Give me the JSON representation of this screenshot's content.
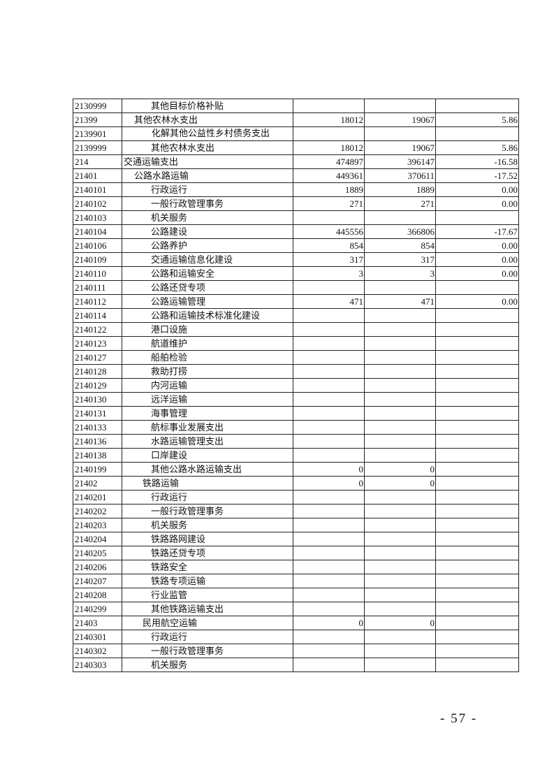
{
  "table": {
    "rows": [
      {
        "code": "2130999",
        "name": "其他目标价格补贴",
        "level": "l2",
        "v1": "",
        "v2": "",
        "v3": ""
      },
      {
        "code": "21399",
        "name": "其他农林水支出",
        "level": "l1",
        "v1": "18012",
        "v2": "19067",
        "v3": "5.86"
      },
      {
        "code": "2139901",
        "name": "化解其他公益性乡村债务支出",
        "level": "wrap",
        "v1": "",
        "v2": "",
        "v3": ""
      },
      {
        "code": "2139999",
        "name": "其他农林水支出",
        "level": "l2",
        "v1": "18012",
        "v2": "19067",
        "v3": "5.86"
      },
      {
        "code": "214",
        "name": "交通运输支出",
        "level": "l0",
        "v1": "474897",
        "v2": "396147",
        "v3": "-16.58"
      },
      {
        "code": "21401",
        "name": "公路水路运输",
        "level": "l1",
        "v1": "449361",
        "v2": "370611",
        "v3": "-17.52"
      },
      {
        "code": "2140101",
        "name": "行政运行",
        "level": "l2",
        "v1": "1889",
        "v2": "1889",
        "v3": "0.00"
      },
      {
        "code": "2140102",
        "name": "一般行政管理事务",
        "level": "l2",
        "v1": "271",
        "v2": "271",
        "v3": "0.00"
      },
      {
        "code": "2140103",
        "name": "机关服务",
        "level": "l2",
        "v1": "",
        "v2": "",
        "v3": ""
      },
      {
        "code": "2140104",
        "name": "公路建设",
        "level": "l2",
        "v1": "445556",
        "v2": "366806",
        "v3": "-17.67"
      },
      {
        "code": "2140106",
        "name": "公路养护",
        "level": "l2",
        "v1": "854",
        "v2": "854",
        "v3": "0.00"
      },
      {
        "code": "2140109",
        "name": "交通运输信息化建设",
        "level": "l2",
        "v1": "317",
        "v2": "317",
        "v3": "0.00"
      },
      {
        "code": "2140110",
        "name": "公路和运输安全",
        "level": "l2",
        "v1": "3",
        "v2": "3",
        "v3": "0.00"
      },
      {
        "code": "2140111",
        "name": "公路还贷专项",
        "level": "l2",
        "v1": "",
        "v2": "",
        "v3": ""
      },
      {
        "code": "2140112",
        "name": "公路运输管理",
        "level": "l2",
        "v1": "471",
        "v2": "471",
        "v3": "0.00"
      },
      {
        "code": "2140114",
        "name": "公路和运输技术标准化建设",
        "level": "l2",
        "v1": "",
        "v2": "",
        "v3": ""
      },
      {
        "code": "2140122",
        "name": "港口设施",
        "level": "l2",
        "v1": "",
        "v2": "",
        "v3": ""
      },
      {
        "code": "2140123",
        "name": "航道维护",
        "level": "l2",
        "v1": "",
        "v2": "",
        "v3": ""
      },
      {
        "code": "2140127",
        "name": "船舶检验",
        "level": "l2",
        "v1": "",
        "v2": "",
        "v3": ""
      },
      {
        "code": "2140128",
        "name": "救助打捞",
        "level": "l2",
        "v1": "",
        "v2": "",
        "v3": ""
      },
      {
        "code": "2140129",
        "name": "内河运输",
        "level": "l2",
        "v1": "",
        "v2": "",
        "v3": ""
      },
      {
        "code": "2140130",
        "name": "远洋运输",
        "level": "l2",
        "v1": "",
        "v2": "",
        "v3": ""
      },
      {
        "code": "2140131",
        "name": "海事管理",
        "level": "l2",
        "v1": "",
        "v2": "",
        "v3": ""
      },
      {
        "code": "2140133",
        "name": "航标事业发展支出",
        "level": "l2",
        "v1": "",
        "v2": "",
        "v3": ""
      },
      {
        "code": "2140136",
        "name": "水路运输管理支出",
        "level": "l2",
        "v1": "",
        "v2": "",
        "v3": ""
      },
      {
        "code": "2140138",
        "name": "口岸建设",
        "level": "l2",
        "v1": "",
        "v2": "",
        "v3": ""
      },
      {
        "code": "2140199",
        "name": "其他公路水路运输支出",
        "level": "l2",
        "v1": "0",
        "v2": "0",
        "v3": ""
      },
      {
        "code": "21402",
        "name": "铁路运输",
        "level": "l1b",
        "v1": "0",
        "v2": "0",
        "v3": ""
      },
      {
        "code": "2140201",
        "name": "行政运行",
        "level": "l2",
        "v1": "",
        "v2": "",
        "v3": ""
      },
      {
        "code": "2140202",
        "name": "一般行政管理事务",
        "level": "l2",
        "v1": "",
        "v2": "",
        "v3": ""
      },
      {
        "code": "2140203",
        "name": "机关服务",
        "level": "l2",
        "v1": "",
        "v2": "",
        "v3": ""
      },
      {
        "code": "2140204",
        "name": "铁路路网建设",
        "level": "l2",
        "v1": "",
        "v2": "",
        "v3": ""
      },
      {
        "code": "2140205",
        "name": "铁路还贷专项",
        "level": "l2",
        "v1": "",
        "v2": "",
        "v3": ""
      },
      {
        "code": "2140206",
        "name": "铁路安全",
        "level": "l2",
        "v1": "",
        "v2": "",
        "v3": ""
      },
      {
        "code": "2140207",
        "name": "铁路专项运输",
        "level": "l2",
        "v1": "",
        "v2": "",
        "v3": ""
      },
      {
        "code": "2140208",
        "name": "行业监管",
        "level": "l2",
        "v1": "",
        "v2": "",
        "v3": ""
      },
      {
        "code": "2140299",
        "name": "其他铁路运输支出",
        "level": "l2",
        "v1": "",
        "v2": "",
        "v3": ""
      },
      {
        "code": "21403",
        "name": "民用航空运输",
        "level": "l1b",
        "v1": "0",
        "v2": "0",
        "v3": ""
      },
      {
        "code": "2140301",
        "name": "行政运行",
        "level": "l2",
        "v1": "",
        "v2": "",
        "v3": ""
      },
      {
        "code": "2140302",
        "name": "一般行政管理事务",
        "level": "l2",
        "v1": "",
        "v2": "",
        "v3": ""
      },
      {
        "code": "2140303",
        "name": "机关服务",
        "level": "l2",
        "v1": "",
        "v2": "",
        "v3": ""
      }
    ]
  },
  "footer": {
    "page_number": "- 57 -"
  }
}
